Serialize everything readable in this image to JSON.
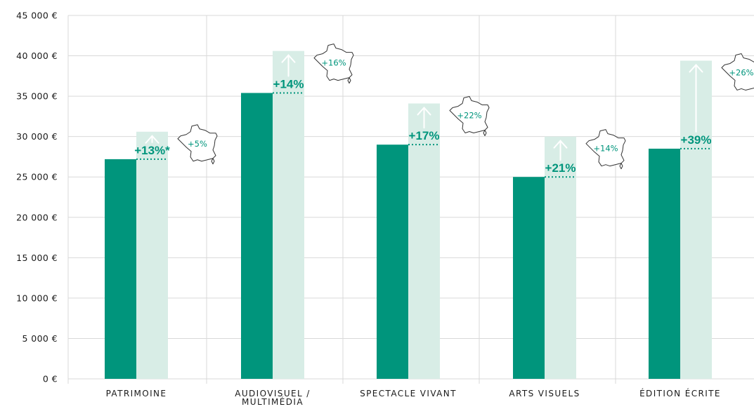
{
  "colors": {
    "dark_bar": "#00957c",
    "light_bar": "#d8ede6",
    "accent": "#00957c",
    "grid": "#d9d9d9",
    "outline": "#333333"
  },
  "chart_data": {
    "type": "bar",
    "title": "",
    "xlabel": "",
    "ylabel": "",
    "ylim": [
      0,
      45000
    ],
    "yticks": [
      "0 €",
      "5 000 €",
      "10 000 €",
      "15 000 €",
      "20 000 €",
      "25 000 €",
      "30 000 €",
      "35 000 €",
      "40 000 €",
      "45 000 €"
    ],
    "ytick_values": [
      0,
      5000,
      10000,
      15000,
      20000,
      25000,
      30000,
      35000,
      40000,
      45000
    ],
    "grid": true,
    "categories": [
      [
        "PATRIMOINE"
      ],
      [
        "AUDIOVISUEL /",
        "MULTIMÉDIA"
      ],
      [
        "SPECTACLE VIVANT"
      ],
      [
        "ARTS VISUELS"
      ],
      [
        "ÉDITION ÉCRITE"
      ]
    ],
    "series": [
      {
        "values": [
          27200,
          35400,
          29000,
          25000,
          28500
        ]
      },
      {
        "values": [
          30600,
          40600,
          34100,
          30000,
          39400
        ]
      }
    ],
    "change_labels": [
      "+13%*",
      "+14%",
      "+17%",
      "+21%",
      "+39%"
    ],
    "regional_labels": [
      "+5%",
      "+16%",
      "+22%",
      "+14%",
      "+26%"
    ]
  }
}
